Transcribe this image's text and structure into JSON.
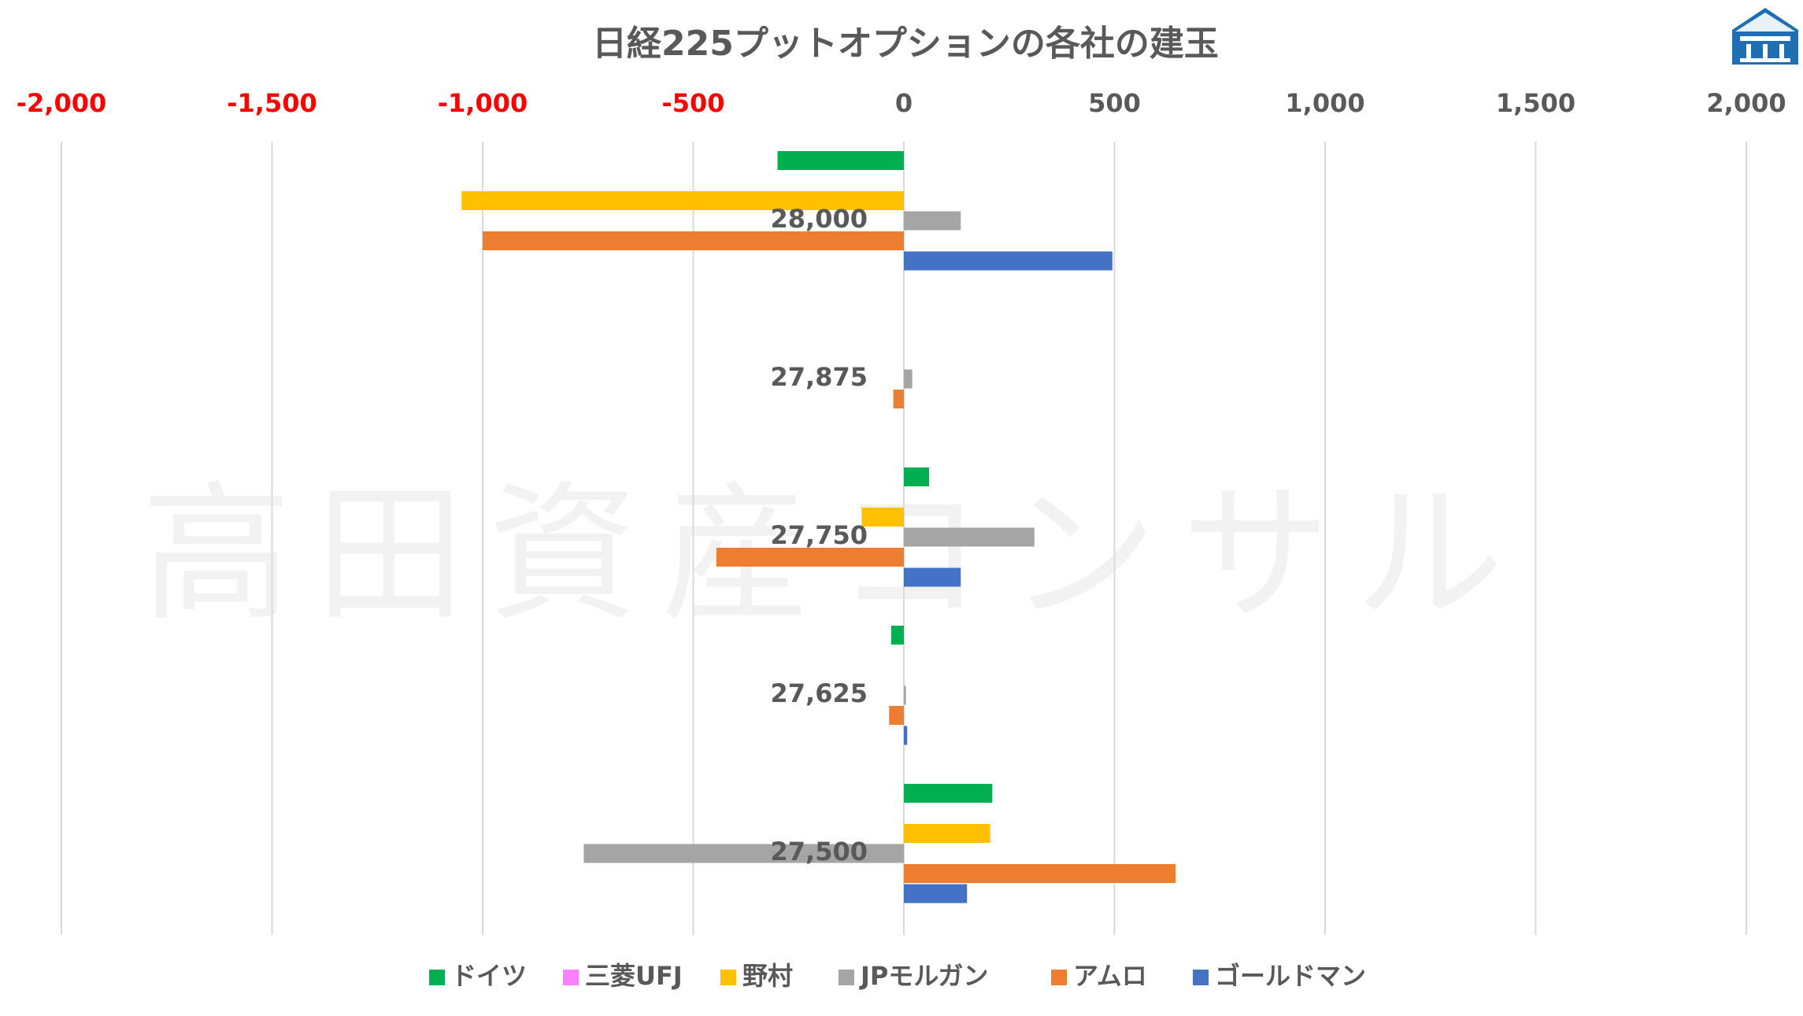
{
  "chart_data": {
    "type": "bar",
    "orientation": "horizontal",
    "title": "日経225プットオプションの各社の建玉",
    "watermark": "高田資産コンサル",
    "xlim": [
      -2000,
      2000
    ],
    "xticks": [
      -2000,
      -1500,
      -1000,
      -500,
      0,
      500,
      1000,
      1500,
      2000
    ],
    "xtick_labels": [
      "-2,000",
      "-1,500",
      "-1,000",
      "-500",
      "0",
      "500",
      "1,000",
      "1,500",
      "2,000"
    ],
    "negative_tick_color": "#ff0000",
    "positive_tick_color": "#595959",
    "grid": true,
    "legend_position": "bottom",
    "categories": [
      "28,000",
      "27,875",
      "27,750",
      "27,625",
      "27,500"
    ],
    "series": [
      {
        "name": "ドイツ",
        "color": "#00b050",
        "values": [
          -300,
          0,
          60,
          -30,
          210
        ]
      },
      {
        "name": "三菱UFJ",
        "color": "#ff80ff",
        "values": [
          0,
          0,
          0,
          0,
          0
        ]
      },
      {
        "name": "野村",
        "color": "#ffc000",
        "values": [
          -1050,
          0,
          -100,
          0,
          205
        ]
      },
      {
        "name": "JPモルガン",
        "color": "#a5a5a5",
        "values": [
          135,
          20,
          310,
          5,
          -760
        ]
      },
      {
        "name": "アムロ",
        "color": "#ed7d31",
        "values": [
          -1000,
          -25,
          -445,
          -35,
          645
        ]
      },
      {
        "name": "ゴールドマン",
        "color": "#4472c4",
        "values": [
          495,
          0,
          135,
          8,
          150
        ]
      }
    ]
  },
  "logo": {
    "name": "logo-mark",
    "color": "#1f77b4"
  }
}
